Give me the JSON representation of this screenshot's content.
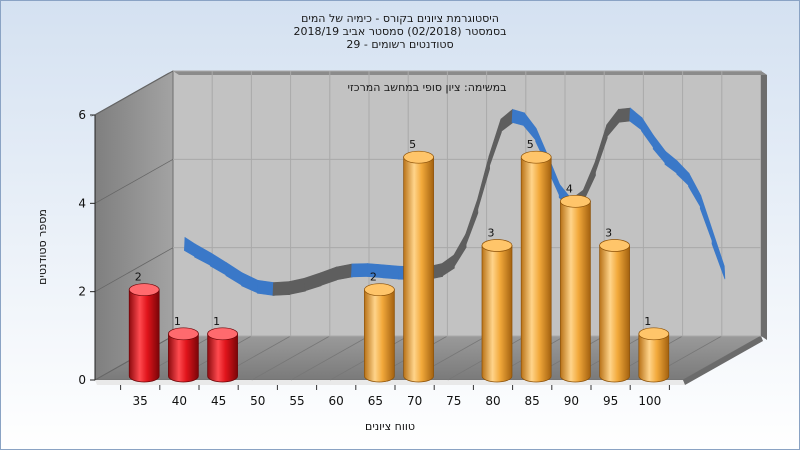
{
  "chart_data": {
    "type": "bar",
    "title_lines": [
      "היסטוגרמת ציונים בקורס - כימיה של המים",
      "בסמסטר  (02/2018)  סמסטר אביב 2018/19",
      "סטודנטים רשומים - 29"
    ],
    "subtitle": "במשימה: ציון סופי במחשב המרכזי",
    "xlabel": "טווח ציונים",
    "ylabel": "מספר סטודנטים",
    "categories": [
      "35",
      "40",
      "45",
      "50",
      "55",
      "60",
      "65",
      "70",
      "75",
      "80",
      "85",
      "90",
      "95",
      "100"
    ],
    "values": [
      2,
      1,
      1,
      0,
      0,
      0,
      2,
      5,
      0,
      3,
      5,
      4,
      3,
      1
    ],
    "value_labels": [
      "2",
      "1",
      "1",
      "",
      "",
      "",
      "2",
      "5",
      "",
      "3",
      "5",
      "4",
      "3",
      "1"
    ],
    "y_ticks": [
      "0",
      "2",
      "4",
      "6"
    ],
    "ylim": [
      0,
      6
    ],
    "grid": true,
    "colors": {
      "bar_low": "#e0141b",
      "bar_high": "#f2a93b",
      "curve_front": "#3a78c8",
      "curve_back": "#5e5e5e",
      "wall": "#9a9a9a",
      "floor": "#8a8a8a"
    },
    "curve": {
      "x": [
        35.7,
        37,
        39,
        41,
        43,
        45,
        47,
        49,
        51,
        53,
        55,
        57,
        59,
        61,
        63,
        65,
        67,
        68.5,
        70,
        71.5,
        73,
        74.5,
        76,
        77.5,
        79,
        80.5,
        82,
        83.5,
        85,
        86.5,
        88,
        89.5,
        91,
        92.5,
        94,
        95.5,
        97,
        98.5,
        100,
        101.5,
        103,
        104.5
      ],
      "y": [
        2.65,
        2.5,
        2.3,
        2.08,
        1.85,
        1.68,
        1.63,
        1.65,
        1.73,
        1.85,
        1.98,
        2.05,
        2.06,
        2.03,
        2.0,
        1.99,
        2.0,
        2.06,
        2.25,
        2.72,
        3.5,
        4.5,
        5.33,
        5.55,
        5.47,
        5.12,
        4.5,
        3.85,
        3.52,
        3.72,
        4.35,
        5.2,
        5.55,
        5.58,
        5.36,
        4.95,
        4.6,
        4.38,
        4.1,
        3.6,
        2.8,
        2.0
      ]
    }
  }
}
